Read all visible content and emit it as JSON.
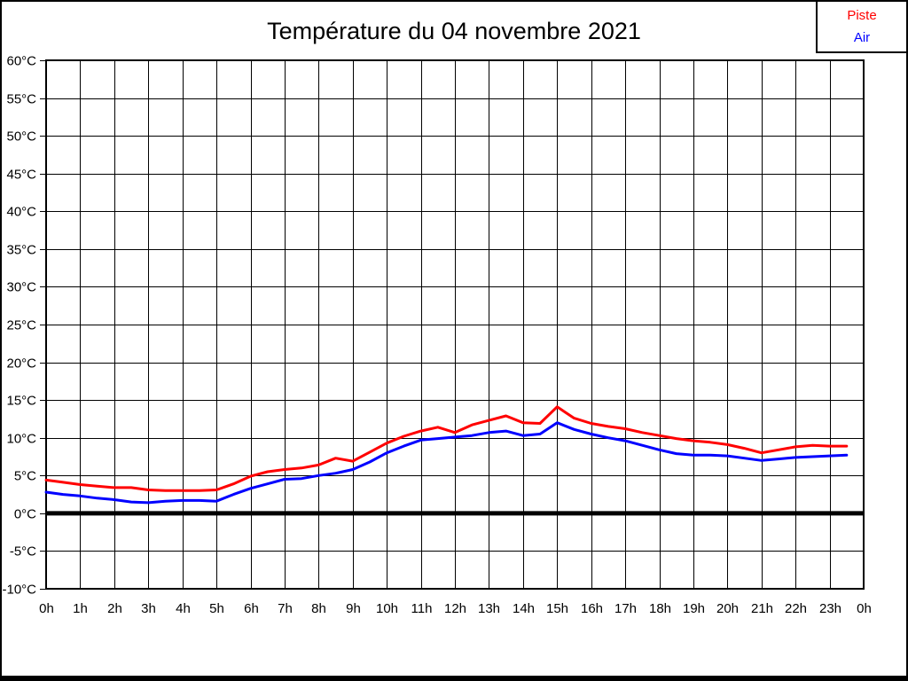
{
  "header": {
    "title": "Température du 04 novembre 2021"
  },
  "legend": {
    "items": [
      {
        "label": "Piste",
        "color": "#ff0000"
      },
      {
        "label": "Air",
        "color": "#0000ff"
      }
    ]
  },
  "chart_data": {
    "type": "line",
    "title": "Température du 04 novembre 2021",
    "xlabel": "",
    "ylabel": "",
    "xlim": [
      0,
      24
    ],
    "ylim": [
      -10,
      60
    ],
    "y_tick_step": 5,
    "grid": true,
    "zero_line": true,
    "legend_position": "top-right",
    "x_tick_labels": [
      "0h",
      "1h",
      "2h",
      "3h",
      "4h",
      "5h",
      "6h",
      "7h",
      "8h",
      "9h",
      "10h",
      "11h",
      "12h",
      "13h",
      "14h",
      "15h",
      "16h",
      "17h",
      "18h",
      "19h",
      "20h",
      "21h",
      "22h",
      "23h",
      "0h"
    ],
    "y_tick_labels": [
      "60°C",
      "55°C",
      "50°C",
      "45°C",
      "40°C",
      "35°C",
      "30°C",
      "25°C",
      "20°C",
      "15°C",
      "10°C",
      "5°C",
      "0°C",
      "-5°C",
      "-10°C"
    ],
    "series": [
      {
        "name": "Piste",
        "color": "#ff0000",
        "x": [
          0,
          0.5,
          1,
          1.5,
          2,
          2.5,
          3,
          3.5,
          4,
          4.5,
          5,
          5.5,
          6,
          6.5,
          7,
          7.5,
          8,
          8.5,
          9,
          9.5,
          10,
          10.5,
          11,
          11.5,
          12,
          12.5,
          13,
          13.5,
          14,
          14.5,
          15,
          15.5,
          16,
          16.5,
          17,
          17.5,
          18,
          18.5,
          19,
          19.5,
          20,
          20.5,
          21,
          21.5,
          22,
          22.5,
          23,
          23.5
        ],
        "values": [
          4.4,
          4.1,
          3.8,
          3.6,
          3.4,
          3.4,
          3.1,
          3.0,
          3.0,
          3.0,
          3.1,
          3.9,
          4.9,
          5.5,
          5.8,
          6.0,
          6.4,
          7.3,
          6.9,
          8.1,
          9.3,
          10.2,
          10.9,
          11.4,
          10.7,
          11.7,
          12.3,
          12.9,
          12.0,
          11.9,
          14.1,
          12.6,
          11.9,
          11.5,
          11.2,
          10.7,
          10.3,
          9.9,
          9.6,
          9.4,
          9.1,
          8.6,
          8.0,
          8.4,
          8.8,
          9.0,
          8.9,
          8.9
        ]
      },
      {
        "name": "Air",
        "color": "#0000ff",
        "x": [
          0,
          0.5,
          1,
          1.5,
          2,
          2.5,
          3,
          3.5,
          4,
          4.5,
          5,
          5.5,
          6,
          6.5,
          7,
          7.5,
          8,
          8.5,
          9,
          9.5,
          10,
          10.5,
          11,
          11.5,
          12,
          12.5,
          13,
          13.5,
          14,
          14.5,
          15,
          15.5,
          16,
          16.5,
          17,
          17.5,
          18,
          18.5,
          19,
          19.5,
          20,
          20.5,
          21,
          21.5,
          22,
          22.5,
          23,
          23.5
        ],
        "values": [
          2.8,
          2.5,
          2.3,
          2.0,
          1.8,
          1.5,
          1.4,
          1.6,
          1.7,
          1.7,
          1.6,
          2.5,
          3.3,
          3.9,
          4.5,
          4.6,
          5.0,
          5.3,
          5.8,
          6.8,
          8.0,
          8.9,
          9.7,
          9.9,
          10.1,
          10.3,
          10.7,
          10.9,
          10.3,
          10.5,
          12.0,
          11.1,
          10.5,
          10.0,
          9.6,
          9.0,
          8.4,
          7.9,
          7.7,
          7.7,
          7.6,
          7.3,
          7.0,
          7.2,
          7.4,
          7.5,
          7.6,
          7.7
        ]
      }
    ]
  }
}
